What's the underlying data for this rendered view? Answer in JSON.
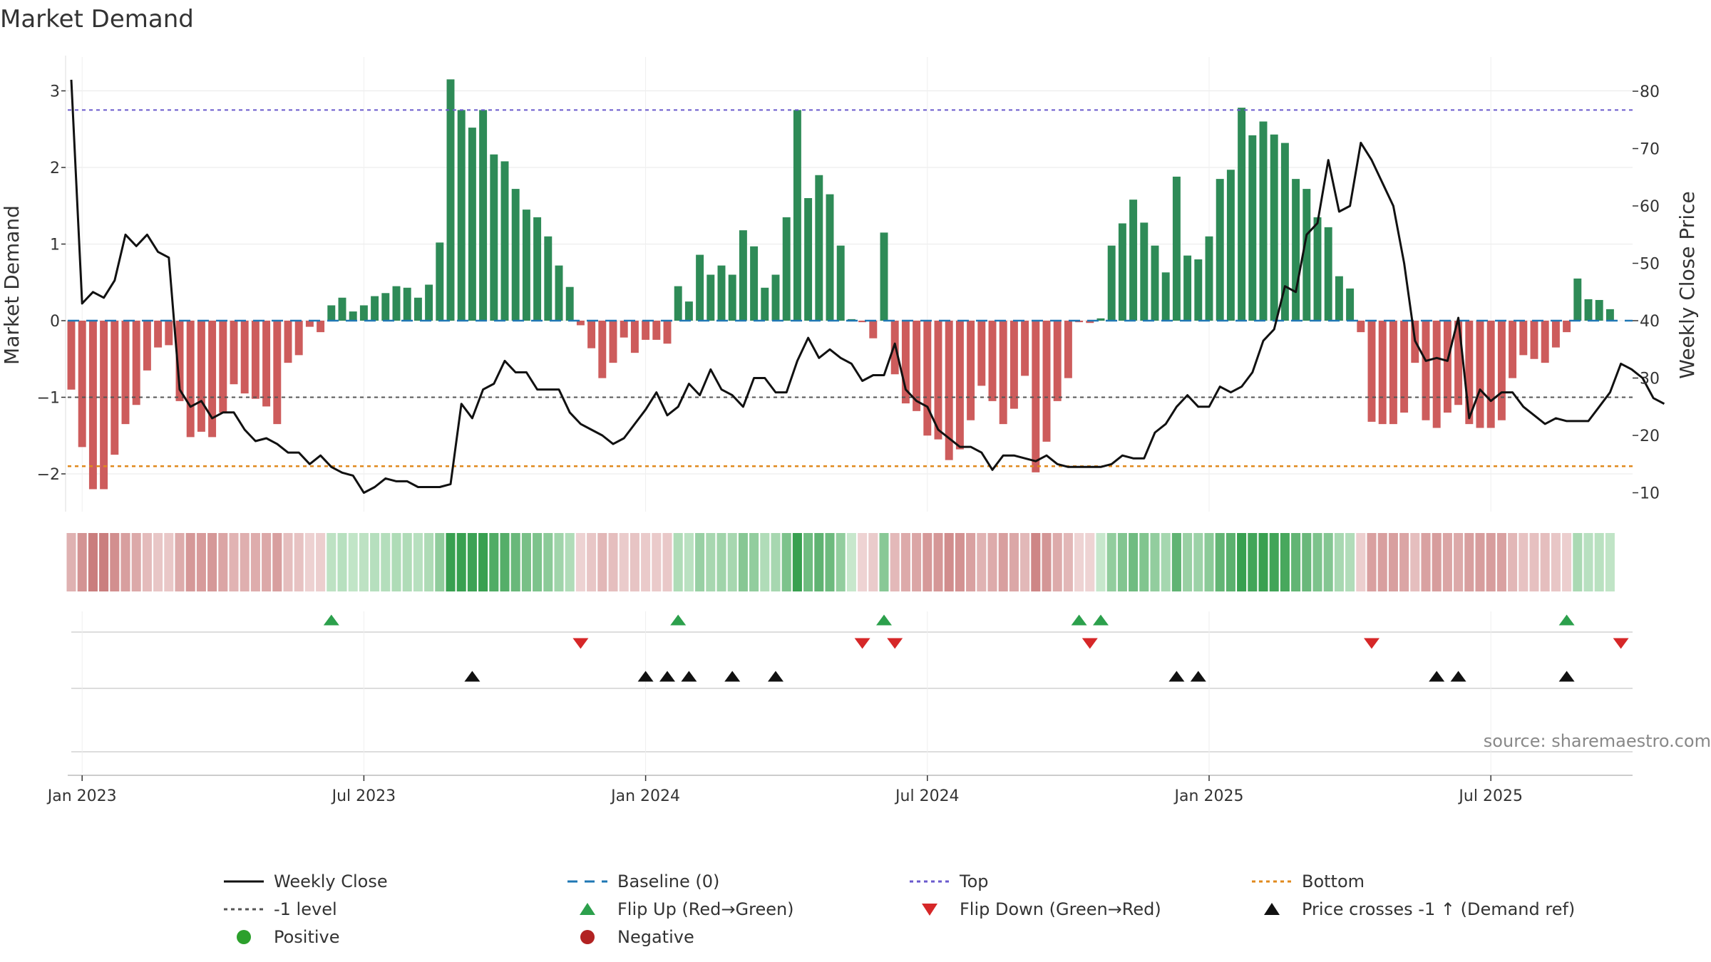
{
  "chart_data": {
    "type": "bar+line",
    "title": "Market Demand",
    "ylabel": "Market Demand",
    "y2label": "Weekly Close Price",
    "ylim": [
      -2.5,
      3.2
    ],
    "y2lim": [
      7,
      83
    ],
    "yticks": [
      {
        "v": 3,
        "t": "3"
      },
      {
        "v": 2,
        "t": "2"
      },
      {
        "v": 1,
        "t": "1"
      },
      {
        "v": 0,
        "t": "0"
      },
      {
        "v": -1,
        "t": "−1"
      },
      {
        "v": -2,
        "t": "−2"
      }
    ],
    "y2ticks": [
      {
        "v": 80,
        "t": "80"
      },
      {
        "v": 70,
        "t": "70"
      },
      {
        "v": 60,
        "t": "60"
      },
      {
        "v": 50,
        "t": "50"
      },
      {
        "v": 40,
        "t": "40"
      },
      {
        "v": 30,
        "t": "30"
      },
      {
        "v": 20,
        "t": "20"
      },
      {
        "v": 10,
        "t": "10"
      }
    ],
    "xticks": [
      {
        "week": 1,
        "t": "Jan 2023"
      },
      {
        "week": 27,
        "t": "Jul 2023"
      },
      {
        "week": 53,
        "t": "Jan 2024"
      },
      {
        "week": 79,
        "t": "Jul 2024"
      },
      {
        "week": 105,
        "t": "Jan 2025"
      },
      {
        "week": 131,
        "t": "Jul 2025"
      }
    ],
    "start_week": "2022-12-26",
    "demand": [
      -0.9,
      -1.65,
      -2.2,
      -2.2,
      -1.75,
      -1.35,
      -1.1,
      -0.65,
      -0.35,
      -0.32,
      -1.05,
      -1.52,
      -1.45,
      -1.52,
      -1.2,
      -0.83,
      -0.95,
      -1.02,
      -1.12,
      -1.35,
      -0.55,
      -0.45,
      -0.08,
      -0.15,
      0.2,
      0.3,
      0.12,
      0.2,
      0.32,
      0.36,
      0.45,
      0.43,
      0.3,
      0.47,
      1.02,
      3.15,
      2.75,
      2.52,
      2.75,
      2.17,
      2.08,
      1.72,
      1.45,
      1.35,
      1.1,
      0.72,
      0.44,
      -0.06,
      -0.36,
      -0.75,
      -0.55,
      -0.22,
      -0.42,
      -0.25,
      -0.25,
      -0.3,
      0.45,
      0.25,
      0.86,
      0.6,
      0.72,
      0.6,
      1.18,
      0.97,
      0.43,
      0.6,
      1.35,
      2.75,
      1.6,
      1.9,
      1.65,
      0.98,
      0.02,
      -0.02,
      -0.23,
      1.15,
      -0.7,
      -1.08,
      -1.18,
      -1.5,
      -1.55,
      -1.82,
      -1.68,
      -1.3,
      -0.85,
      -1.05,
      -1.35,
      -1.15,
      -0.72,
      -1.98,
      -1.58,
      -1.05,
      -0.75,
      -0.02,
      -0.03,
      0.03,
      0.98,
      1.27,
      1.58,
      1.28,
      0.98,
      0.63,
      1.88,
      0.85,
      0.8,
      1.1,
      1.85,
      1.97,
      2.78,
      2.42,
      2.6,
      2.43,
      2.32,
      1.85,
      1.72,
      1.35,
      1.22,
      0.58,
      0.42,
      -0.15,
      -1.32,
      -1.35,
      -1.35,
      -1.2,
      -0.55,
      -1.3,
      -1.4,
      -1.2,
      -1.1,
      -1.35,
      -1.4,
      -1.4,
      -1.3,
      -0.75,
      -0.45,
      -0.5,
      -0.55,
      -0.35,
      -0.15,
      0.55,
      0.28,
      0.27,
      0.15
    ],
    "close": [
      82,
      43,
      45,
      44,
      47,
      55,
      53,
      55,
      52,
      51,
      28,
      25,
      26,
      23,
      24,
      24,
      21,
      19,
      19.5,
      18.5,
      17,
      17,
      15,
      16.5,
      14.5,
      13.5,
      13,
      10,
      11,
      12.5,
      12,
      12,
      11,
      11,
      11,
      11.5,
      25.5,
      23,
      28,
      29,
      33,
      31,
      31,
      28,
      28,
      28,
      24,
      22,
      21,
      20,
      18.5,
      19.5,
      22,
      24.5,
      27.5,
      23.5,
      25,
      29,
      27,
      31.5,
      28,
      27,
      25,
      30,
      30,
      27.5,
      27.5,
      33,
      37,
      33.5,
      35,
      33.5,
      32.5,
      29.5,
      30.5,
      30.5,
      36,
      28,
      26,
      25,
      21,
      19.5,
      18,
      18,
      17,
      14,
      16.5,
      16.5,
      16,
      15.5,
      16.5,
      15,
      14.5,
      14.5,
      14.5,
      14.5,
      15,
      16.5,
      16,
      16,
      20.5,
      22,
      25,
      27,
      25,
      25,
      28.5,
      27.5,
      28.5,
      31,
      36.5,
      38.5,
      46,
      45,
      55,
      57,
      68,
      59,
      60,
      71,
      68,
      64,
      60,
      50,
      36.5,
      33,
      33.5,
      33,
      40.5,
      23,
      28,
      26,
      27.5,
      27.5,
      25,
      23.5,
      22,
      23,
      22.5,
      22.5,
      22.5,
      25,
      27.5,
      32.5,
      31.5,
      30,
      26.5,
      25.5
    ],
    "top_level": 2.75,
    "bottom_level": -1.9,
    "minus_one_level": -1,
    "baseline": 0,
    "flip_up_weeks": [
      24,
      56,
      75,
      93,
      95,
      138
    ],
    "flip_down_weeks": [
      47,
      73,
      76,
      94,
      120,
      143
    ],
    "price_cross_weeks": [
      37,
      53,
      55,
      57,
      61,
      65,
      102,
      104,
      126,
      128,
      138
    ],
    "colors": {
      "positive_bar": "#2e8b57",
      "negative_bar": "#cd5c5c",
      "close_line": "#111111",
      "baseline": "#1f77b4",
      "top": "#6a5acd",
      "bottom": "#e08a1e",
      "minus_one": "#555555",
      "flip_up": "#2ca04c",
      "flip_down": "#d62728",
      "price_cross": "#111111",
      "positive_dot": "#2ca02c",
      "negative_dot": "#b22222"
    },
    "source_text": "source: sharemaestro.com",
    "legend": {
      "placement": "bottom",
      "entries": [
        {
          "label": "Weekly Close",
          "kind": "line",
          "color": "#111111"
        },
        {
          "label": "Baseline (0)",
          "kind": "dash",
          "color": "#1f77b4"
        },
        {
          "label": "Top",
          "kind": "dot",
          "color": "#6a5acd"
        },
        {
          "label": "Bottom",
          "kind": "dot",
          "color": "#e08a1e"
        },
        {
          "label": "-1 level",
          "kind": "dot",
          "color": "#555555"
        },
        {
          "label": "Flip Up (Red→Green)",
          "kind": "tri-up",
          "color": "#2ca04c"
        },
        {
          "label": "Flip Down (Green→Red)",
          "kind": "tri-down",
          "color": "#d62728"
        },
        {
          "label": "Price crosses -1 ↑ (Demand ref)",
          "kind": "tri-up",
          "color": "#111111"
        },
        {
          "label": "Positive",
          "kind": "circle",
          "color": "#2ca02c"
        },
        {
          "label": "Negative",
          "kind": "circle",
          "color": "#b22222"
        }
      ]
    }
  }
}
